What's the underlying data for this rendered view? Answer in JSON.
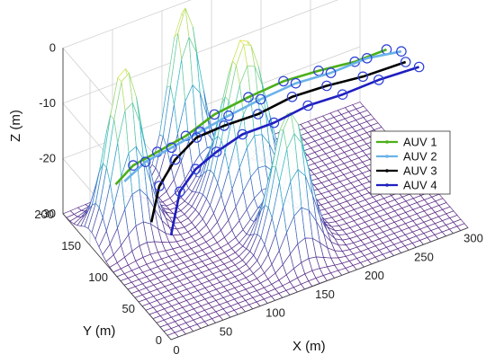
{
  "chart_data": {
    "type": "surface3d",
    "title": "",
    "xlabel": "X (m)",
    "ylabel": "Y (m)",
    "zlabel": "Z (m)",
    "xlim": [
      0,
      300
    ],
    "ylim": [
      0,
      200
    ],
    "zlim": [
      -30,
      0
    ],
    "x_ticks": [
      "0",
      "50",
      "100",
      "150",
      "200",
      "250",
      "300"
    ],
    "y_ticks": [
      "0",
      "50",
      "100",
      "150",
      "200"
    ],
    "z_ticks": [
      "0",
      "-10",
      "-20",
      "-30"
    ],
    "grid": true,
    "legend_position": "right",
    "terrain": {
      "description_free": true,
      "peaks": [
        {
          "x": 35,
          "y": 150,
          "height": 30,
          "sigma": 16
        },
        {
          "x": 120,
          "y": 195,
          "height": 30,
          "sigma": 14
        },
        {
          "x": 145,
          "y": 130,
          "height": 30,
          "sigma": 20
        },
        {
          "x": 150,
          "y": 55,
          "height": 25,
          "sigma": 16
        }
      ],
      "colormap": [
        "#5b2a86",
        "#3b6cc4",
        "#2fb7c9",
        "#7fd38a",
        "#f5e93a"
      ]
    },
    "series": [
      {
        "name": "AUV 1",
        "color": "#4caf1a",
        "points": [
          [
            45,
            185,
            -26
          ],
          [
            60,
            180,
            -23
          ],
          [
            80,
            172,
            -21
          ],
          [
            105,
            165,
            -19
          ],
          [
            130,
            158,
            -16
          ],
          [
            160,
            150,
            -14
          ],
          [
            190,
            140,
            -12
          ],
          [
            220,
            130,
            -11
          ],
          [
            250,
            118,
            -10
          ],
          [
            275,
            105,
            -8
          ]
        ]
      },
      {
        "name": "AUV 2",
        "color": "#6ab2e8",
        "points": [
          [
            50,
            178,
            -25
          ],
          [
            68,
            172,
            -22
          ],
          [
            90,
            164,
            -20
          ],
          [
            115,
            157,
            -18
          ],
          [
            140,
            150,
            -16
          ],
          [
            168,
            142,
            -14
          ],
          [
            198,
            132,
            -12
          ],
          [
            228,
            122,
            -11
          ],
          [
            258,
            110,
            -9
          ],
          [
            285,
            96,
            -8
          ]
        ]
      },
      {
        "name": "AUV 3",
        "color": "#000000",
        "points": [
          [
            62,
            150,
            -30
          ],
          [
            70,
            150,
            -24
          ],
          [
            85,
            148,
            -20
          ],
          [
            105,
            145,
            -17
          ],
          [
            130,
            140,
            -16
          ],
          [
            160,
            132,
            -15
          ],
          [
            190,
            124,
            -13
          ],
          [
            220,
            115,
            -12
          ],
          [
            250,
            103,
            -11
          ],
          [
            285,
            88,
            -9
          ]
        ]
      },
      {
        "name": "AUV 4",
        "color": "#1f1fbf",
        "points": [
          [
            72,
            132,
            -31
          ],
          [
            82,
            134,
            -24
          ],
          [
            98,
            134,
            -21
          ],
          [
            118,
            132,
            -19
          ],
          [
            142,
            128,
            -17
          ],
          [
            170,
            121,
            -16
          ],
          [
            200,
            113,
            -14
          ],
          [
            230,
            104,
            -13
          ],
          [
            260,
            92,
            -11
          ],
          [
            292,
            76,
            -9
          ]
        ]
      }
    ]
  }
}
